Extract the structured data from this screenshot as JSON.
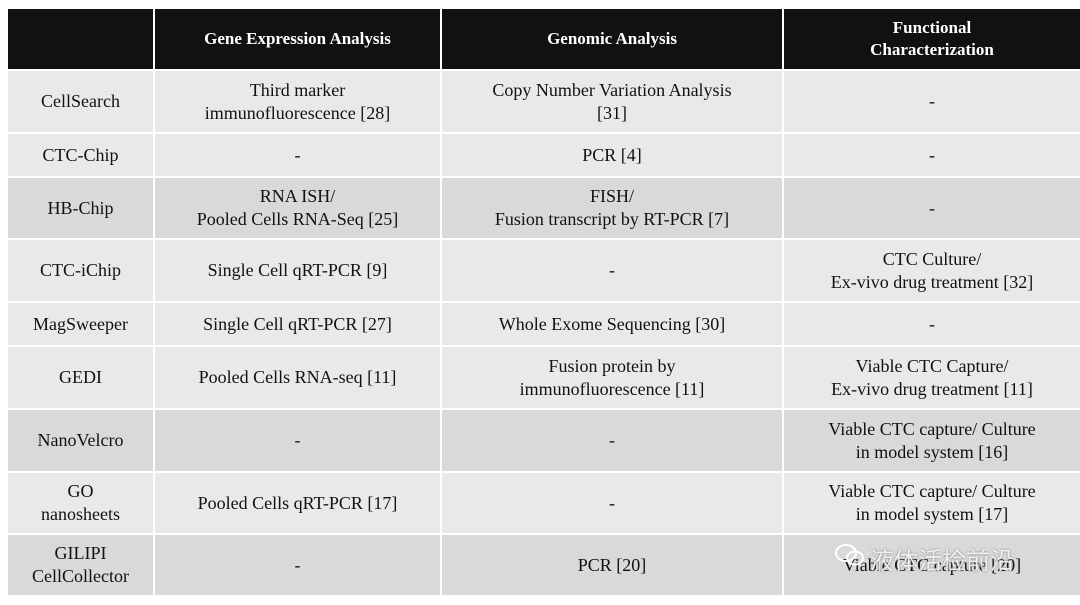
{
  "table": {
    "header": [
      "Gene Expression Analysis",
      "Genomic Analysis",
      "Functional\nCharacterization"
    ],
    "rows": [
      [
        "CellSearch",
        "Third marker\nimmunofluorescence [28]",
        "Copy Number Variation Analysis\n[31]",
        "-"
      ],
      [
        "CTC-Chip",
        "-",
        "PCR [4]",
        "-"
      ],
      [
        "HB-Chip",
        "RNA ISH/\nPooled Cells RNA-Seq [25]",
        "FISH/\nFusion transcript by RT-PCR [7]",
        "-"
      ],
      [
        "CTC-iChip",
        "Single Cell qRT-PCR [9]",
        "-",
        "CTC Culture/\nEx-vivo drug treatment [32]"
      ],
      [
        "MagSweeper",
        "Single Cell qRT-PCR [27]",
        "Whole Exome Sequencing [30]",
        "-"
      ],
      [
        "GEDI",
        "Pooled Cells RNA-seq [11]",
        "Fusion protein by\nimmunofluorescence [11]",
        "Viable CTC Capture/\nEx-vivo drug treatment [11]"
      ],
      [
        "NanoVelcro",
        "-",
        "-",
        "Viable CTC capture/ Culture\nin model system [16]"
      ],
      [
        "GO\nnanosheets",
        "Pooled Cells qRT-PCR [17]",
        "-",
        "Viable CTC capture/ Culture\nin model system [17]"
      ],
      [
        "GILIPI\nCellCollector",
        "-",
        "PCR [20]",
        "Viable CTC capture [20]"
      ]
    ]
  },
  "watermark": "液体活检前沿"
}
